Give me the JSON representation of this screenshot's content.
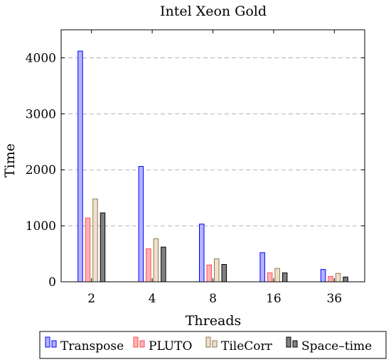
{
  "chart_data": {
    "type": "bar",
    "title": "Intel Xeon Gold",
    "xlabel": "Threads",
    "ylabel": "Time",
    "categories": [
      "2",
      "4",
      "8",
      "16",
      "36"
    ],
    "ylim": [
      0,
      4500
    ],
    "yticks": [
      0,
      1000,
      2000,
      3000,
      4000
    ],
    "grid": "horizontal-dashed",
    "legend_position": "bottom",
    "series": [
      {
        "name": "Transpose",
        "values": [
          4120,
          2060,
          1030,
          520,
          220
        ],
        "fill": "#b3b3ff",
        "stroke": "#0000ff"
      },
      {
        "name": "PLUTO",
        "values": [
          1140,
          590,
          300,
          160,
          95
        ],
        "fill": "#ffb3b3",
        "stroke": "#ff4d4d"
      },
      {
        "name": "TileCorr",
        "values": [
          1480,
          770,
          410,
          240,
          150
        ],
        "fill": "#f0e0c8",
        "stroke": "#8c7a5c"
      },
      {
        "name": "Space–time",
        "values": [
          1230,
          620,
          310,
          160,
          85
        ],
        "fill": "#808080",
        "stroke": "#000000"
      }
    ]
  }
}
